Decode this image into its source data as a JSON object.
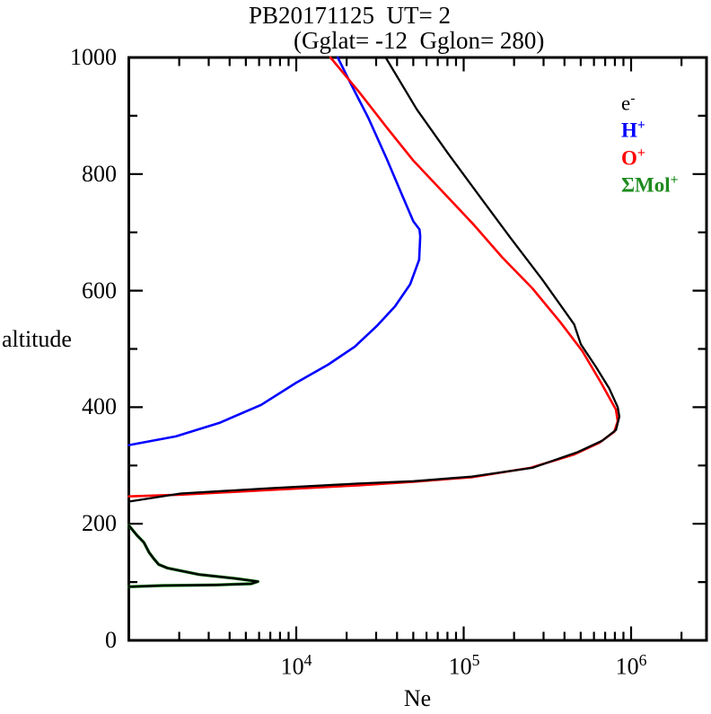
{
  "title": {
    "line1": "PB20171125  UT= 2",
    "line2": "(Gglat= -12  Gglon= 280)"
  },
  "axes": {
    "x": {
      "label": "Ne",
      "scale": "log",
      "ticks": [
        {
          "base": "10",
          "exp": "4"
        },
        {
          "base": "10",
          "exp": "5"
        },
        {
          "base": "10",
          "exp": "6"
        }
      ]
    },
    "y": {
      "label": "altitude",
      "ticks": [
        "0",
        "200",
        "400",
        "600",
        "800",
        "1000"
      ]
    }
  },
  "legend": [
    {
      "text": "e",
      "sup": "-",
      "color": "#000000",
      "bold": false
    },
    {
      "text": "H",
      "sup": "+",
      "color": "#0000ff",
      "bold": true
    },
    {
      "text": "O",
      "sup": "+",
      "color": "#ff0000",
      "bold": true
    },
    {
      "text": "ΣMol",
      "sup": "+",
      "color": "#1e8b1e",
      "bold": true
    }
  ],
  "chart_data": {
    "type": "line",
    "title": "PB20171125 UT= 2 (Gglat= -12 Gglon= 280)",
    "xlabel": "Ne",
    "ylabel": "altitude",
    "x_scale": "log",
    "x_range": [
      1000,
      2820000
    ],
    "y_range": [
      0,
      1000
    ],
    "y_major_step": 200,
    "y_minor_step": 100,
    "x_major_ticks": [
      10000,
      100000,
      1000000
    ],
    "grid": false,
    "legend_position": "inside-top-right",
    "point_format": "[Ne_per_cm3, altitude_km]",
    "series": [
      {
        "id": "h",
        "name": "H+",
        "color": "#0000ff",
        "segments": [
          [
            [
              17700,
              1000
            ],
            [
              21000,
              957
            ],
            [
              27000,
              896
            ],
            [
              34700,
              826
            ],
            [
              42700,
              765
            ],
            [
              50000,
              719
            ],
            [
              54500,
              705
            ],
            [
              55000,
              693
            ],
            [
              54200,
              653
            ],
            [
              47900,
              611
            ],
            [
              38900,
              573
            ],
            [
              30200,
              539
            ],
            [
              22400,
              504
            ],
            [
              15500,
              473
            ],
            [
              10000,
              442
            ],
            [
              6170,
              404
            ],
            [
              3470,
              373
            ],
            [
              1910,
              350
            ],
            [
              1000,
              335
            ]
          ]
        ]
      },
      {
        "id": "o",
        "name": "O+",
        "color": "#ff0000",
        "segments": [
          [
            [
              16000,
              1000
            ],
            [
              23700,
              941
            ],
            [
              34700,
              880
            ],
            [
              50100,
              823
            ],
            [
              75900,
              768
            ],
            [
              115000,
              713
            ],
            [
              170000,
              657
            ],
            [
              257000,
              604
            ],
            [
              380000,
              545
            ],
            [
              512000,
              496
            ],
            [
              661000,
              442
            ],
            [
              812000,
              396
            ],
            [
              832000,
              376
            ],
            [
              794000,
              358
            ],
            [
              646000,
              339
            ],
            [
              457000,
              319
            ],
            [
              251000,
              296
            ],
            [
              112000,
              280
            ],
            [
              50100,
              272
            ],
            [
              23400,
              266
            ],
            [
              6920,
              258
            ],
            [
              2040,
              250
            ],
            [
              1000,
              247
            ]
          ]
        ]
      },
      {
        "id": "mol",
        "name": "ΣMol+",
        "color": "#1e8b1e",
        "segments": [
          [
            [
              1000,
              197
            ],
            [
              1120,
              180
            ],
            [
              1230,
              168
            ],
            [
              1320,
              151
            ],
            [
              1410,
              140
            ],
            [
              1510,
              130
            ],
            [
              1700,
              124
            ],
            [
              2630,
              113
            ],
            [
              4370,
              106
            ],
            [
              5900,
              101
            ],
            [
              5370,
              97
            ],
            [
              3310,
              95
            ],
            [
              1580,
              94
            ],
            [
              1000,
              92
            ]
          ]
        ]
      },
      {
        "id": "e",
        "name": "e-",
        "color": "#000000",
        "segments": [
          [
            [
              34200,
              1000
            ],
            [
              52500,
              911
            ],
            [
              81300,
              834
            ],
            [
              126000,
              760
            ],
            [
              191000,
              690
            ],
            [
              295000,
              619
            ],
            [
              457000,
              542
            ],
            [
              501000,
              508
            ],
            [
              617000,
              469
            ],
            [
              741000,
              432
            ],
            [
              832000,
              400
            ],
            [
              851000,
              384
            ],
            [
              813000,
              361
            ],
            [
              676000,
              343
            ],
            [
              479000,
              323
            ],
            [
              257000,
              296
            ],
            [
              112000,
              281
            ],
            [
              50100,
              273
            ],
            [
              23400,
              269
            ],
            [
              6920,
              261
            ],
            [
              2040,
              252
            ],
            [
              1000,
              238
            ]
          ],
          [
            [
              1000,
              197
            ],
            [
              1120,
              180
            ],
            [
              1230,
              168
            ],
            [
              1320,
              151
            ],
            [
              1410,
              140
            ],
            [
              1510,
              130
            ],
            [
              1700,
              124
            ],
            [
              2630,
              113
            ],
            [
              4370,
              106
            ],
            [
              5900,
              101
            ],
            [
              5370,
              97
            ],
            [
              3310,
              95
            ],
            [
              1580,
              94
            ],
            [
              1000,
              92
            ]
          ]
        ]
      }
    ]
  }
}
